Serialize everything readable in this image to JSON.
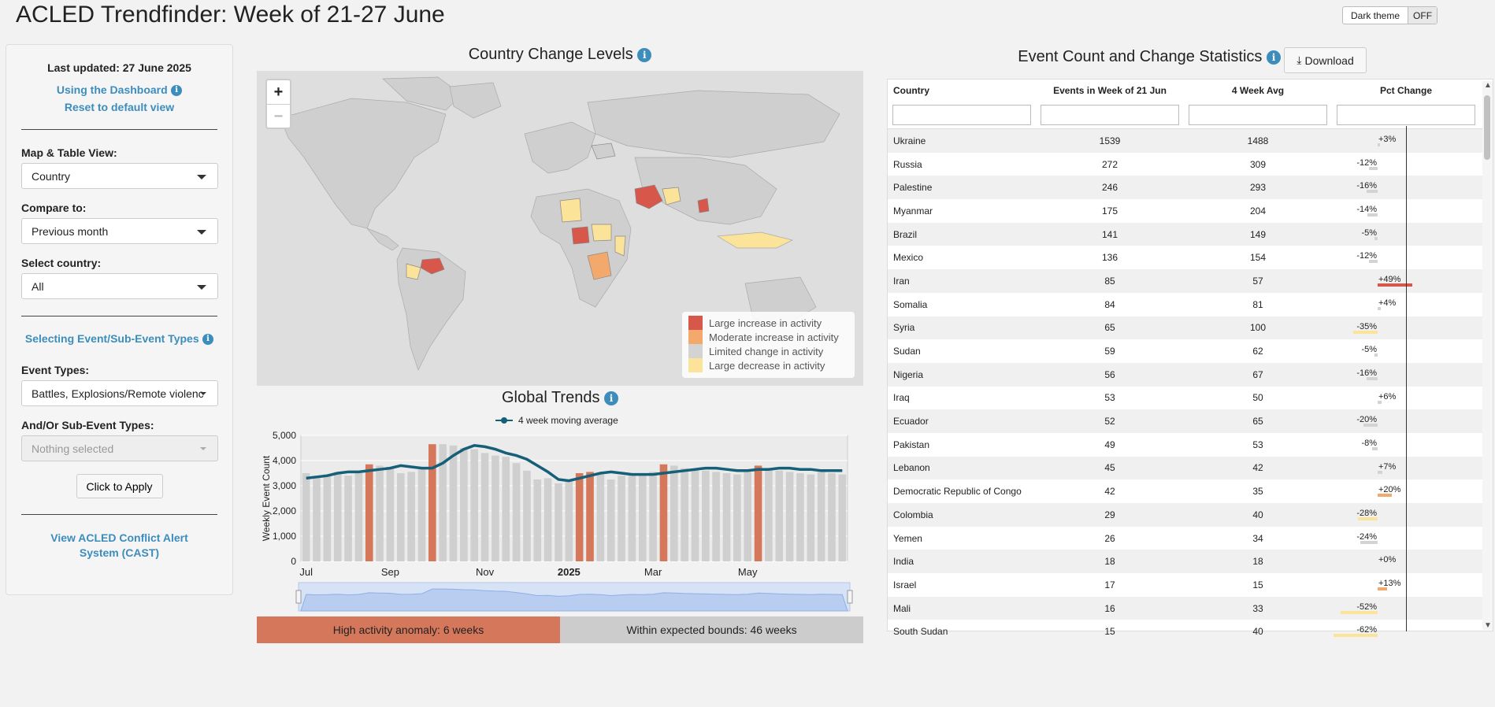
{
  "header": {
    "title": "ACLED Trendfinder: Week of 21-27 June",
    "theme_label": "Dark theme",
    "theme_state": "OFF"
  },
  "sidebar": {
    "last_updated": "Last updated: 27 June 2025",
    "using_dashboard": "Using the Dashboard",
    "reset_view": "Reset to default view",
    "map_view_label": "Map & Table View:",
    "map_view_value": "Country",
    "compare_label": "Compare to:",
    "compare_value": "Previous month",
    "country_label": "Select country:",
    "country_value": "All",
    "selecting_types": "Selecting Event/Sub-Event Types",
    "event_types_label": "Event Types:",
    "event_types_value": "Battles, Explosions/Remote violenc",
    "sub_event_label": "And/Or Sub-Event Types:",
    "sub_event_value": "Nothing selected",
    "apply_label": "Click to Apply",
    "cast_link": "View ACLED Conflict Alert System (CAST)"
  },
  "map": {
    "title": "Country Change Levels",
    "legend": [
      {
        "label": "Large increase in activity",
        "color": "#d7574a"
      },
      {
        "label": "Moderate increase in activity",
        "color": "#f4a96c"
      },
      {
        "label": "Limited change in activity",
        "color": "#d3d3d3"
      },
      {
        "label": "Large decrease in activity",
        "color": "#fbe39a"
      }
    ],
    "zoom_in": "+",
    "zoom_out": "−"
  },
  "trends": {
    "title": "Global Trends",
    "legend_label": "4 week moving average",
    "high_anomaly": "High activity anomaly: 6 weeks",
    "within_bounds": "Within expected bounds: 46 weeks",
    "high_color": "#d4775a",
    "normal_color": "#cccccc",
    "line_color": "#155f78"
  },
  "chart_data": {
    "type": "bar",
    "ylabel": "Weekly Event Count",
    "ylim": [
      0,
      5000
    ],
    "yticks": [
      "0",
      "1,000",
      "2,000",
      "3,000",
      "4,000",
      "5,000"
    ],
    "xticks": [
      "Jul",
      "Sep",
      "Nov",
      "2025",
      "Mar",
      "May"
    ],
    "values": [
      3500,
      3400,
      3450,
      3550,
      3400,
      3500,
      3850,
      3800,
      3750,
      3500,
      3550,
      3650,
      4650,
      4650,
      4600,
      4500,
      4450,
      4300,
      4200,
      4150,
      3900,
      3600,
      3250,
      3300,
      3100,
      3200,
      3500,
      3550,
      3450,
      3250,
      3400,
      3500,
      3450,
      3550,
      3850,
      3800,
      3700,
      3650,
      3600,
      3550,
      3500,
      3450,
      3550,
      3800,
      3700,
      3600,
      3550,
      3500,
      3450,
      3550,
      3500,
      3450
    ],
    "high": [
      false,
      false,
      false,
      false,
      false,
      false,
      true,
      false,
      false,
      false,
      false,
      false,
      true,
      false,
      false,
      false,
      false,
      false,
      false,
      false,
      false,
      false,
      false,
      false,
      false,
      false,
      true,
      true,
      false,
      false,
      false,
      false,
      false,
      false,
      true,
      false,
      false,
      false,
      false,
      false,
      false,
      false,
      false,
      true,
      false,
      false,
      false,
      false,
      false,
      false,
      false,
      false
    ],
    "moving_avg": [
      3300,
      3350,
      3400,
      3500,
      3550,
      3550,
      3600,
      3650,
      3700,
      3800,
      3750,
      3700,
      3700,
      3900,
      4200,
      4450,
      4600,
      4550,
      4450,
      4300,
      4200,
      4050,
      3800,
      3550,
      3250,
      3200,
      3300,
      3400,
      3500,
      3550,
      3500,
      3450,
      3450,
      3450,
      3500,
      3550,
      3600,
      3650,
      3700,
      3700,
      3650,
      3600,
      3600,
      3650,
      3650,
      3700,
      3700,
      3650,
      3650,
      3600,
      3600,
      3600
    ]
  },
  "table": {
    "title": "Event Count and Change Statistics",
    "download": "Download",
    "headers": [
      "Country",
      "Events in Week of 21 Jun",
      "4 Week Avg",
      "Pct Change"
    ],
    "rows": [
      {
        "country": "Ukraine",
        "events": "1539",
        "avg": "1488",
        "pct": "+3%",
        "pct_val": 3
      },
      {
        "country": "Russia",
        "events": "272",
        "avg": "309",
        "pct": "-12%",
        "pct_val": -12
      },
      {
        "country": "Palestine",
        "events": "246",
        "avg": "293",
        "pct": "-16%",
        "pct_val": -16
      },
      {
        "country": "Myanmar",
        "events": "175",
        "avg": "204",
        "pct": "-14%",
        "pct_val": -14
      },
      {
        "country": "Brazil",
        "events": "141",
        "avg": "149",
        "pct": "-5%",
        "pct_val": -5
      },
      {
        "country": "Mexico",
        "events": "136",
        "avg": "154",
        "pct": "-12%",
        "pct_val": -12
      },
      {
        "country": "Iran",
        "events": "85",
        "avg": "57",
        "pct": "+49%",
        "pct_val": 49
      },
      {
        "country": "Somalia",
        "events": "84",
        "avg": "81",
        "pct": "+4%",
        "pct_val": 4
      },
      {
        "country": "Syria",
        "events": "65",
        "avg": "100",
        "pct": "-35%",
        "pct_val": -35
      },
      {
        "country": "Sudan",
        "events": "59",
        "avg": "62",
        "pct": "-5%",
        "pct_val": -5
      },
      {
        "country": "Nigeria",
        "events": "56",
        "avg": "67",
        "pct": "-16%",
        "pct_val": -16
      },
      {
        "country": "Iraq",
        "events": "53",
        "avg": "50",
        "pct": "+6%",
        "pct_val": 6
      },
      {
        "country": "Ecuador",
        "events": "52",
        "avg": "65",
        "pct": "-20%",
        "pct_val": -20
      },
      {
        "country": "Pakistan",
        "events": "49",
        "avg": "53",
        "pct": "-8%",
        "pct_val": -8
      },
      {
        "country": "Lebanon",
        "events": "45",
        "avg": "42",
        "pct": "+7%",
        "pct_val": 7
      },
      {
        "country": "Democratic Republic of Congo",
        "events": "42",
        "avg": "35",
        "pct": "+20%",
        "pct_val": 20
      },
      {
        "country": "Colombia",
        "events": "29",
        "avg": "40",
        "pct": "-28%",
        "pct_val": -28
      },
      {
        "country": "Yemen",
        "events": "26",
        "avg": "34",
        "pct": "-24%",
        "pct_val": -24
      },
      {
        "country": "India",
        "events": "18",
        "avg": "18",
        "pct": "+0%",
        "pct_val": 0
      },
      {
        "country": "Israel",
        "events": "17",
        "avg": "15",
        "pct": "+13%",
        "pct_val": 13
      },
      {
        "country": "Mali",
        "events": "16",
        "avg": "33",
        "pct": "-52%",
        "pct_val": -52
      },
      {
        "country": "South Sudan",
        "events": "15",
        "avg": "40",
        "pct": "-62%",
        "pct_val": -62
      }
    ]
  }
}
